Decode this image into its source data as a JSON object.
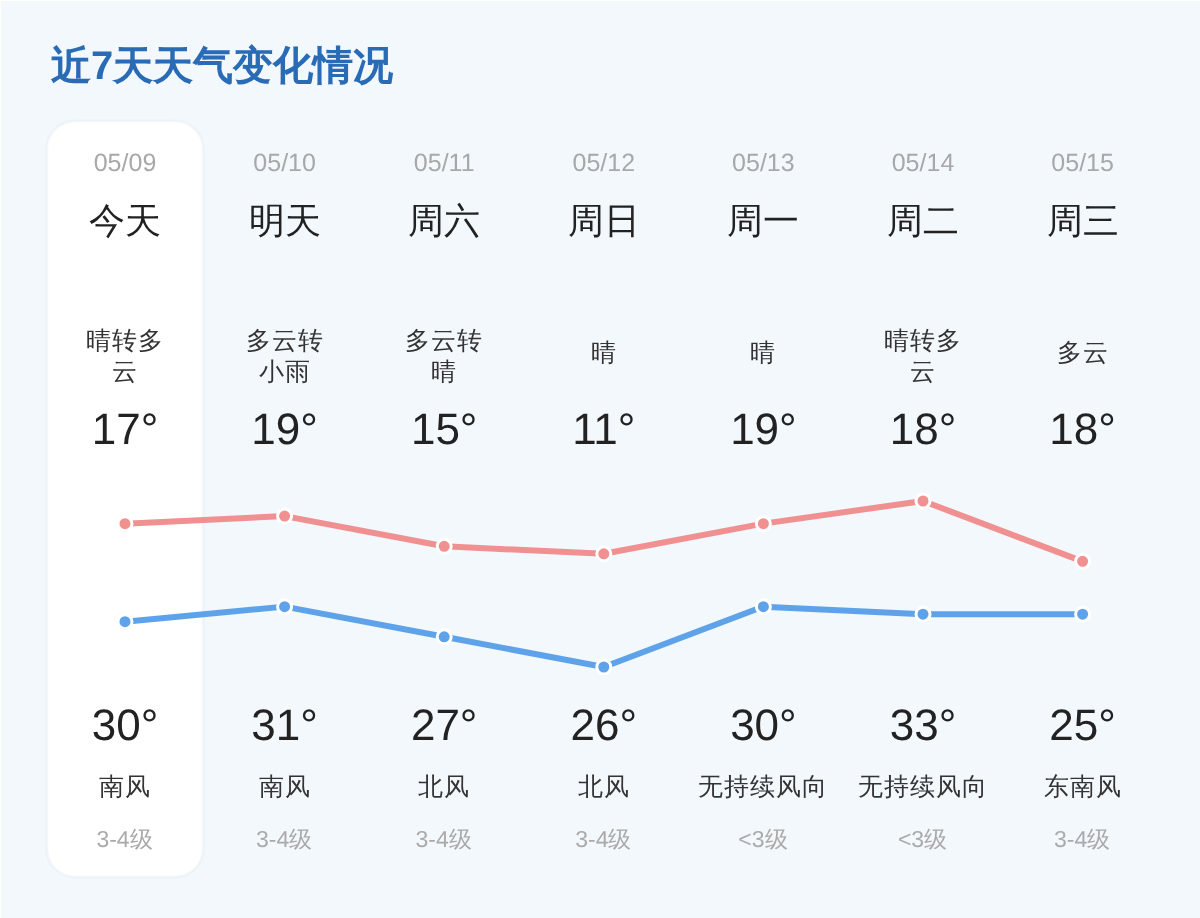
{
  "chart_data": {
    "type": "line",
    "title": "近7天天气变化情况",
    "categories": [
      "05/09",
      "05/10",
      "05/11",
      "05/12",
      "05/13",
      "05/14",
      "05/15"
    ],
    "series": [
      {
        "color": "#5ea3e9",
        "values": [
          17,
          19,
          15,
          11,
          19,
          18,
          18
        ],
        "value_labels": [
          "17°",
          "19°",
          "15°",
          "11°",
          "19°",
          "18°",
          "18°"
        ]
      },
      {
        "color": "#f09090",
        "values": [
          30,
          31,
          27,
          26,
          30,
          33,
          25
        ],
        "value_labels": [
          "30°",
          "31°",
          "27°",
          "26°",
          "30°",
          "33°",
          "25°"
        ]
      }
    ],
    "annotations": [
      "今天",
      "晴转多云",
      "南风",
      "3-4级",
      "明天",
      "多云转小雨",
      "南风",
      "3-4级",
      "周六",
      "多云转晴",
      "北风",
      "3-4级",
      "周日",
      "晴",
      "北风",
      "3-4级",
      "周一",
      "晴",
      "无持续风向",
      "<3级",
      "周二",
      "晴转多云",
      "无持续风向",
      "<3级",
      "周三",
      "多云",
      "东南风",
      "3-4级"
    ],
    "bands": [
      {
        "axis": "x",
        "from": "05/09",
        "to": "05/09",
        "color": "#ffffff"
      }
    ],
    "marker": "circle",
    "line_style": "solid",
    "tick_labels": "x"
  }
}
